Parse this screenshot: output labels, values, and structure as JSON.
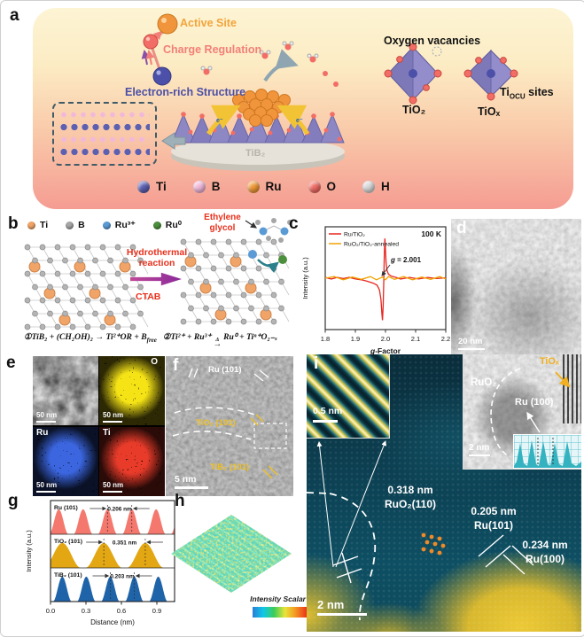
{
  "panels": {
    "a": "a",
    "b": "b",
    "c": "c",
    "d": "d",
    "e": "e",
    "f": "f",
    "g": "g",
    "h": "h",
    "i": "i"
  },
  "panel_a": {
    "active_site": "Active Site",
    "charge_regulation": "Charge Regulation",
    "electron_rich": "Electron-rich Structure",
    "oxygen_vacancies": "Oxygen vacancies",
    "tio2": "TiO₂",
    "tiox": "TiOₓ",
    "tiocu_pre": "Ti",
    "tiocu_sub": "OCU",
    "tiocu_post": " sites",
    "tib2": "TiB₂",
    "e_label": "e⁻",
    "legend": [
      {
        "label": "Ti",
        "color": "#5c60b2"
      },
      {
        "label": "B",
        "color": "#f2b8da"
      },
      {
        "label": "Ru",
        "color": "#f09a38"
      },
      {
        "label": "O",
        "color": "#f26d66"
      },
      {
        "label": "H",
        "color": "#d8d8d8"
      }
    ]
  },
  "panel_b": {
    "legend": [
      {
        "label": "Ti",
        "color": "#f0a468"
      },
      {
        "label": "B",
        "color": "#a6a6a6"
      },
      {
        "label": "Ru³⁺",
        "color": "#5b9bd5"
      },
      {
        "label": "Ru⁰",
        "color": "#4c8f3c"
      }
    ],
    "arrow_top1": "Hydrothermal",
    "arrow_top2": "reaction",
    "arrow_bottom": "CTAB",
    "ethylene1": "Ethylene",
    "ethylene2": "glycol",
    "eq1_main": "①TiB₂ + (CH₂OH)₂ → Ti²⁺OR + B",
    "eq1_sub": "free",
    "eq2_a": "②Ti²⁺ + Ru³⁺",
    "eq2_delta": "Δ",
    "eq2_arrow": "→",
    "eq2_b": "Ru⁰ + Tiⁿ⁺O₂₋ₓ"
  },
  "panel_d": {
    "scalebar": "20 nm"
  },
  "panel_e": {
    "cells": [
      {
        "element": "",
        "scalebar": "50 nm"
      },
      {
        "element": "O",
        "scalebar": "50 nm"
      },
      {
        "element": "Ru",
        "scalebar": "50 nm"
      },
      {
        "element": "Ti",
        "scalebar": "50 nm"
      }
    ]
  },
  "panel_f": {
    "ann_ru": "Ru (101)",
    "ann_tio2": "TiO₂ (101)",
    "ann_tib2": "TiB₂ (101)",
    "scalebar": "5 nm"
  },
  "panel_h": {
    "colorbar_label": "Intensity Scalar"
  },
  "panel_i": {
    "fringe_scalebar": "0.5 nm",
    "tem_ruo2": "RuO₂",
    "tem_ru100": "Ru (100)",
    "tem_tiox": "TiOₓ",
    "tem_scalebar": "2 nm",
    "ann1_l1": "0.318 nm",
    "ann1_l2": "RuO₂(110)",
    "ann2_l1": "0.205 nm",
    "ann2_l2": "Ru(101)",
    "ann3_l1": "0.234 nm",
    "ann3_l2": "Ru(100)",
    "scalebar": "2 nm"
  },
  "chart_data": [
    {
      "id": "epr",
      "panel": "c",
      "type": "line",
      "temperature_label": "100 K",
      "annotation_g_value": "2.001",
      "annotation_text": "g = 2.001",
      "xlabel_italic": "g",
      "xlabel_rest": "-Factor",
      "ylabel": "Intensity (a.u.)",
      "xlim": [
        1.8,
        2.2
      ],
      "xticks": [
        "1.8",
        "1.9",
        "2.0",
        "2.1",
        "2.2"
      ],
      "grid": false,
      "legend_position": "top-left",
      "series": [
        {
          "name": "Ru/TiO₂",
          "color": "#e8251f",
          "points": [
            [
              1.8,
              0.02
            ],
            [
              1.82,
              -0.02
            ],
            [
              1.84,
              0.02
            ],
            [
              1.86,
              -0.01
            ],
            [
              1.88,
              0.02
            ],
            [
              1.9,
              -0.02
            ],
            [
              1.92,
              -0.04
            ],
            [
              1.94,
              -0.08
            ],
            [
              1.96,
              -0.13
            ],
            [
              1.972,
              -0.18
            ],
            [
              1.98,
              -0.3
            ],
            [
              1.985,
              -0.55
            ],
            [
              1.988,
              -0.9
            ],
            [
              1.99,
              -1.08
            ],
            [
              1.9925,
              -0.7
            ],
            [
              1.9945,
              -0.05
            ],
            [
              1.996,
              0.55
            ],
            [
              1.998,
              1.02
            ],
            [
              2.0,
              0.72
            ],
            [
              2.002,
              0.38
            ],
            [
              2.005,
              0.2
            ],
            [
              2.01,
              0.1
            ],
            [
              2.02,
              0.05
            ],
            [
              2.035,
              0.02
            ],
            [
              2.05,
              -0.02
            ],
            [
              2.08,
              0.02
            ],
            [
              2.11,
              -0.02
            ],
            [
              2.14,
              0.02
            ],
            [
              2.17,
              -0.01
            ],
            [
              2.2,
              0.01
            ]
          ]
        },
        {
          "name": "RuO₂/TiO₂-annealed",
          "color": "#f0a200",
          "points": [
            [
              1.8,
              0.0
            ],
            [
              1.83,
              0.04
            ],
            [
              1.86,
              -0.04
            ],
            [
              1.89,
              0.03
            ],
            [
              1.92,
              -0.03
            ],
            [
              1.95,
              0.04
            ],
            [
              1.97,
              -0.04
            ],
            [
              1.99,
              0.03
            ],
            [
              2.0,
              -0.04
            ],
            [
              2.01,
              0.04
            ],
            [
              2.03,
              -0.03
            ],
            [
              2.06,
              0.04
            ],
            [
              2.09,
              -0.04
            ],
            [
              2.12,
              0.03
            ],
            [
              2.15,
              -0.03
            ],
            [
              2.18,
              0.04
            ],
            [
              2.2,
              -0.02
            ]
          ]
        }
      ]
    },
    {
      "id": "profiles",
      "panel": "g",
      "type": "area",
      "xlabel": "Distance (nm)",
      "ylabel": "Intensity (a.u.)",
      "xlim": [
        0,
        1.05
      ],
      "xticks": [
        "0.0",
        "0.3",
        "0.6",
        "0.9"
      ],
      "xtick_vals": [
        0,
        0.3,
        0.6,
        0.9
      ],
      "series": [
        {
          "name": "Ru (101)",
          "color": "#f4786e",
          "spacing_nm": 0.206,
          "spacing_label": "0.206 nm",
          "first_peak": 0.07,
          "halfwidth": 0.082,
          "ann_peaks": [
            2,
            3
          ]
        },
        {
          "name": "TiO₂ (101)",
          "color": "#e2a712",
          "spacing_nm": 0.351,
          "spacing_label": "0.351 nm",
          "first_peak": 0.1,
          "halfwidth": 0.158,
          "ann_peaks": [
            1,
            2
          ]
        },
        {
          "name": "TiB₂ (101)",
          "color": "#1f63a8",
          "spacing_nm": 0.203,
          "spacing_label": "0.203 nm",
          "first_peak": 0.1,
          "halfwidth": 0.08,
          "ann_peaks": [
            2,
            3
          ]
        }
      ]
    }
  ]
}
